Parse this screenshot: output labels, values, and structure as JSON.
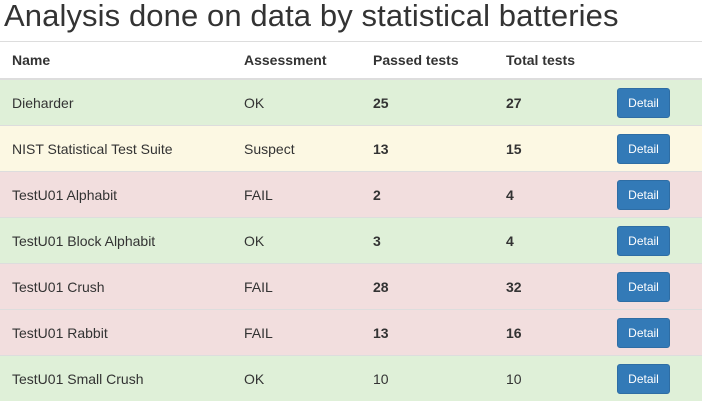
{
  "page": {
    "title": "Analysis done on data by statistical batteries"
  },
  "table": {
    "columns": [
      "Name",
      "Assessment",
      "Passed tests",
      "Total tests",
      ""
    ],
    "rows": [
      {
        "name": "Dieharder",
        "assessment": "OK",
        "passed": "25",
        "total": "27",
        "action": "Detail",
        "status": "ok",
        "bold": true
      },
      {
        "name": "NIST Statistical Test Suite",
        "assessment": "Suspect",
        "passed": "13",
        "total": "15",
        "action": "Detail",
        "status": "warn",
        "bold": true
      },
      {
        "name": "TestU01 Alphabit",
        "assessment": "FAIL",
        "passed": "2",
        "total": "4",
        "action": "Detail",
        "status": "fail",
        "bold": true
      },
      {
        "name": "TestU01 Block Alphabit",
        "assessment": "OK",
        "passed": "3",
        "total": "4",
        "action": "Detail",
        "status": "ok",
        "bold": true
      },
      {
        "name": "TestU01 Crush",
        "assessment": "FAIL",
        "passed": "28",
        "total": "32",
        "action": "Detail",
        "status": "fail",
        "bold": true
      },
      {
        "name": "TestU01 Rabbit",
        "assessment": "FAIL",
        "passed": "13",
        "total": "16",
        "action": "Detail",
        "status": "fail",
        "bold": true
      },
      {
        "name": "TestU01 Small Crush",
        "assessment": "OK",
        "passed": "10",
        "total": "10",
        "action": "Detail",
        "status": "ok",
        "bold": false
      }
    ]
  },
  "colors": {
    "ok_row": "#dff0d8",
    "warn_row": "#fcf8e3",
    "fail_row": "#f2dede",
    "button": "#337ab7"
  }
}
